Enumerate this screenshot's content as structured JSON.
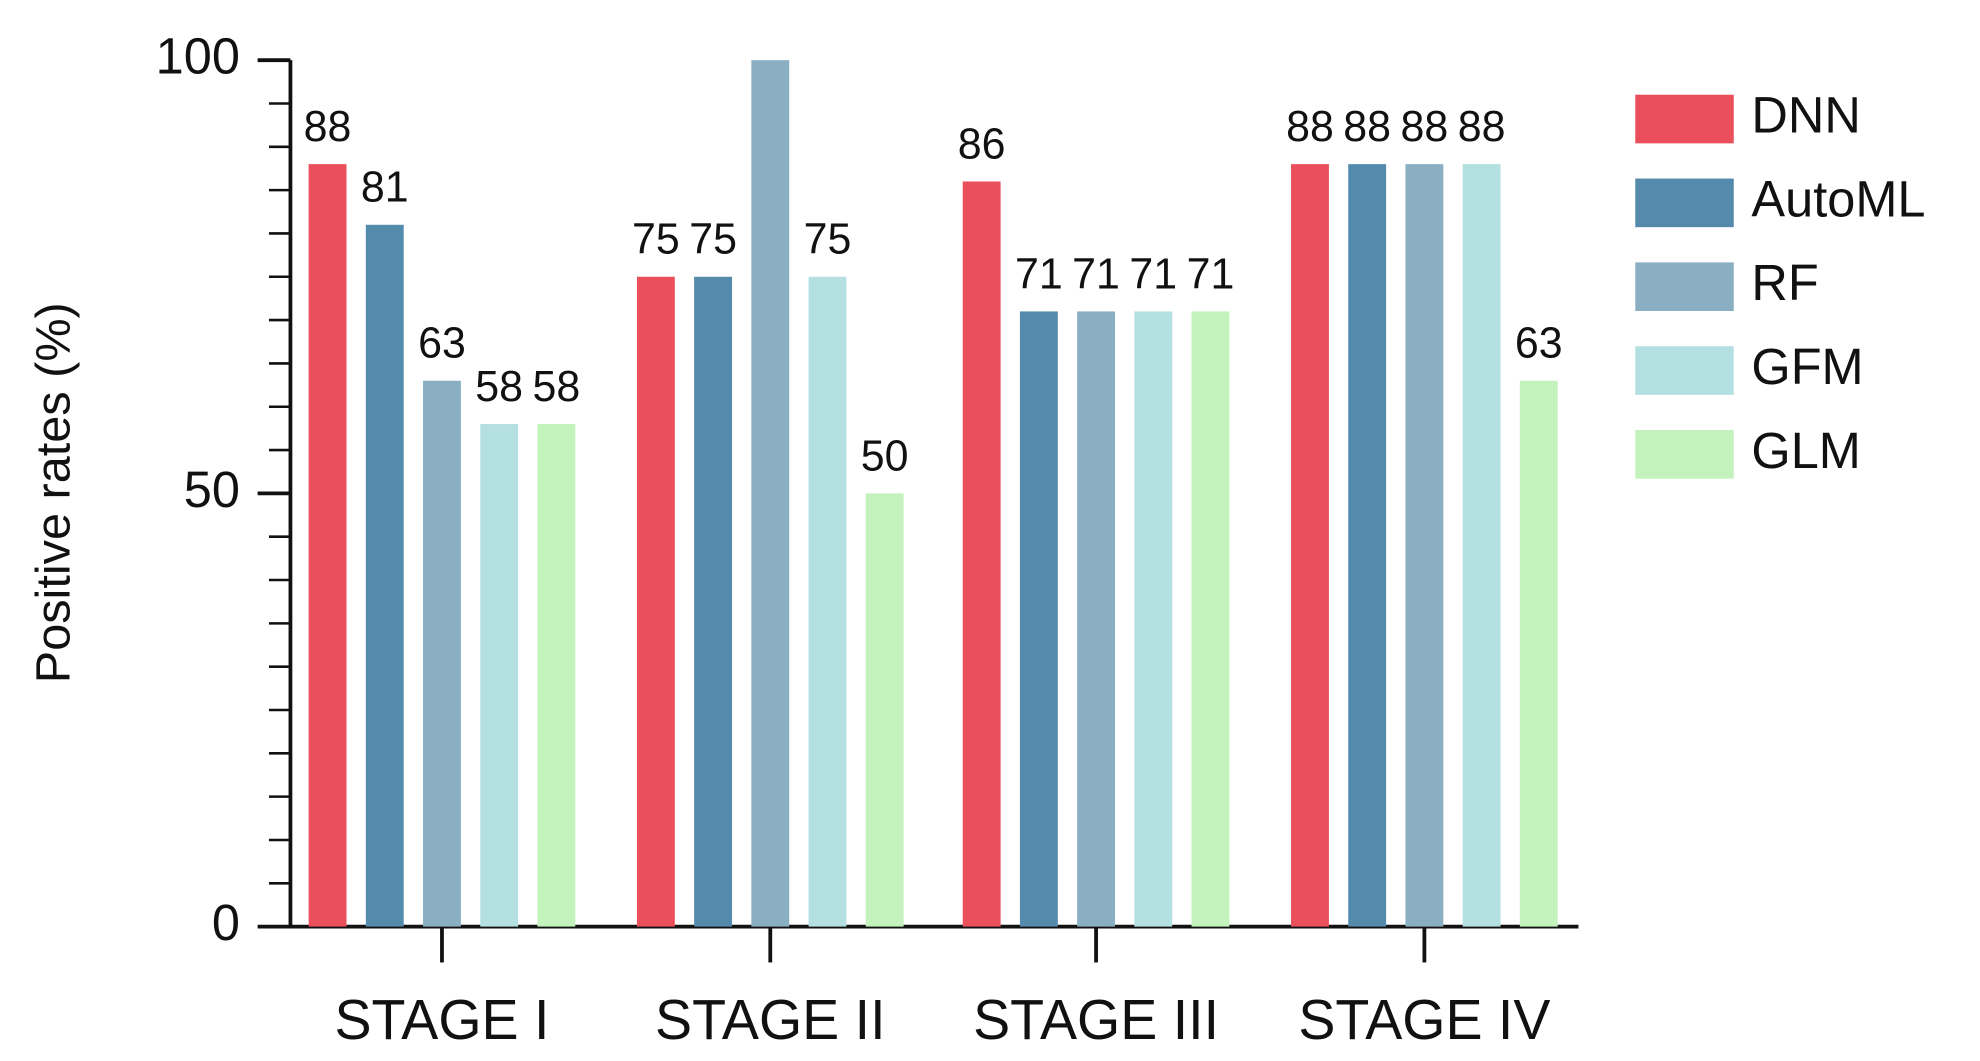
{
  "chart_data": {
    "type": "bar",
    "y_label": "Positive rates (%)",
    "categories": [
      "STAGE I",
      "STAGE II",
      "STAGE III",
      "STAGE IV"
    ],
    "series": [
      {
        "name": "DNN",
        "color": "#ea4f5b",
        "values": [
          88,
          75,
          86,
          88
        ]
      },
      {
        "name": "AutoML",
        "color": "#548aab",
        "values": [
          81,
          75,
          71,
          88
        ]
      },
      {
        "name": "RF",
        "color": "#8aafc3",
        "values": [
          63,
          100,
          71,
          88
        ],
        "value_labels": [
          "63",
          null,
          "71",
          "88"
        ]
      },
      {
        "name": "GFM",
        "color": "#b5e0e2",
        "values": [
          58,
          75,
          71,
          88
        ]
      },
      {
        "name": "GLM",
        "color": "#c3f2bc",
        "values": [
          58,
          50,
          71,
          63
        ]
      }
    ],
    "ylim": [
      0,
      100
    ],
    "yticks": [
      0,
      50,
      100
    ],
    "yminorticks": [
      5,
      10,
      15,
      20,
      25,
      30,
      35,
      40,
      45,
      55,
      60,
      65,
      70,
      75,
      80,
      85,
      90,
      95
    ],
    "legend": "right"
  }
}
